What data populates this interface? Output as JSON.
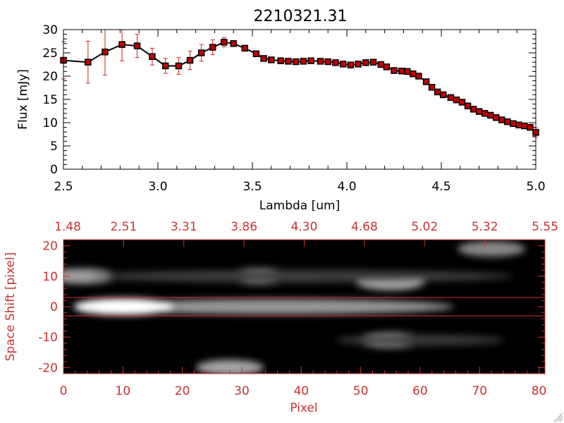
{
  "chart_data": [
    {
      "type": "line",
      "title": "2210321.31",
      "xlabel": "Lambda [um]",
      "ylabel": "Flux [mJy]",
      "xlim": [
        2.5,
        5.0
      ],
      "ylim": [
        0,
        30
      ],
      "x_tick_labels": [
        "2.5",
        "3.0",
        "3.5",
        "4.0",
        "4.5",
        "5.0"
      ],
      "y_tick_labels": [
        "0",
        "5",
        "10",
        "15",
        "20",
        "25",
        "30"
      ],
      "colors": {
        "line": "#000000",
        "marker": "#c00000",
        "errorbar": "#d02020"
      },
      "series": [
        {
          "x": [
            2.5,
            2.63,
            2.72,
            2.81,
            2.89,
            2.97,
            3.04,
            3.11,
            3.17,
            3.23,
            3.29,
            3.35,
            3.4,
            3.46,
            3.52,
            3.56,
            3.6,
            3.65,
            3.69,
            3.73,
            3.77,
            3.81,
            3.86,
            3.9,
            3.94,
            3.98,
            4.02,
            4.06,
            4.1,
            4.14,
            4.18,
            4.21,
            4.25,
            4.29,
            4.32,
            4.35,
            4.38,
            4.42,
            4.45,
            4.48,
            4.51,
            4.55,
            4.58,
            4.61,
            4.64,
            4.67,
            4.7,
            4.73,
            4.76,
            4.79,
            4.82,
            4.85,
            4.88,
            4.91,
            4.94,
            4.97,
            5.0
          ],
          "y": [
            23.4,
            23.0,
            25.2,
            26.8,
            26.5,
            24.2,
            22.2,
            22.2,
            23.4,
            25.0,
            26.2,
            27.3,
            27.0,
            26.0,
            24.8,
            23.8,
            23.5,
            23.3,
            23.2,
            23.1,
            23.2,
            23.3,
            23.2,
            23.1,
            22.9,
            22.6,
            22.4,
            22.6,
            22.9,
            23.0,
            22.5,
            22.0,
            21.2,
            21.1,
            21.0,
            20.5,
            20.0,
            18.8,
            17.6,
            16.6,
            16.0,
            15.4,
            14.9,
            14.4,
            13.6,
            12.9,
            12.4,
            12.0,
            11.6,
            11.1,
            10.6,
            10.2,
            9.8,
            9.5,
            9.3,
            9.0,
            7.9
          ],
          "err": [
            4.0,
            4.5,
            5.0,
            3.5,
            2.5,
            1.8,
            1.6,
            1.8,
            2.0,
            1.8,
            1.6,
            1.0,
            0.6,
            0.5,
            0.4,
            0.4,
            0.4,
            0.4,
            0.4,
            0.4,
            0.4,
            0.4,
            0.4,
            0.4,
            0.4,
            0.4,
            0.4,
            0.4,
            0.4,
            0.4,
            0.4,
            0.4,
            0.4,
            0.4,
            0.4,
            0.4,
            0.4,
            0.4,
            0.4,
            0.4,
            0.4,
            0.4,
            0.4,
            0.4,
            0.4,
            0.4,
            0.4,
            0.4,
            0.4,
            0.4,
            0.4,
            0.4,
            0.4,
            0.4,
            0.4,
            0.4,
            1.0
          ]
        }
      ]
    },
    {
      "type": "heatmap",
      "xlabel": "Pixel",
      "ylabel": "Space Shift [pixel]",
      "xlim": [
        0,
        81
      ],
      "ylim": [
        -22,
        22
      ],
      "x_tick_labels": [
        "0",
        "10",
        "20",
        "30",
        "40",
        "50",
        "60",
        "70",
        "80"
      ],
      "y_tick_labels": [
        "-20",
        "-10",
        "0",
        "10",
        "20"
      ],
      "top_tick_labels": [
        "1.48",
        "2.51",
        "3.31",
        "3.86",
        "4.30",
        "4.68",
        "5.02",
        "5.32",
        "5.55"
      ],
      "aperture_rows": [
        -3,
        3
      ],
      "colors": {
        "axis": "#c83232",
        "aperture": "#c83232",
        "background": "#000000"
      },
      "sources": [
        {
          "x": 10,
          "y": 0,
          "intensity": 1.0
        },
        {
          "x": 33,
          "y": 10,
          "intensity": 0.75
        },
        {
          "x": 3,
          "y": 10,
          "intensity": 0.6
        },
        {
          "x": 55,
          "y": 8,
          "intensity": 0.7
        },
        {
          "x": 55,
          "y": -11,
          "intensity": 0.65
        },
        {
          "x": 28,
          "y": -20,
          "intensity": 0.65
        },
        {
          "x": 72,
          "y": 19,
          "intensity": 0.45
        }
      ]
    }
  ]
}
